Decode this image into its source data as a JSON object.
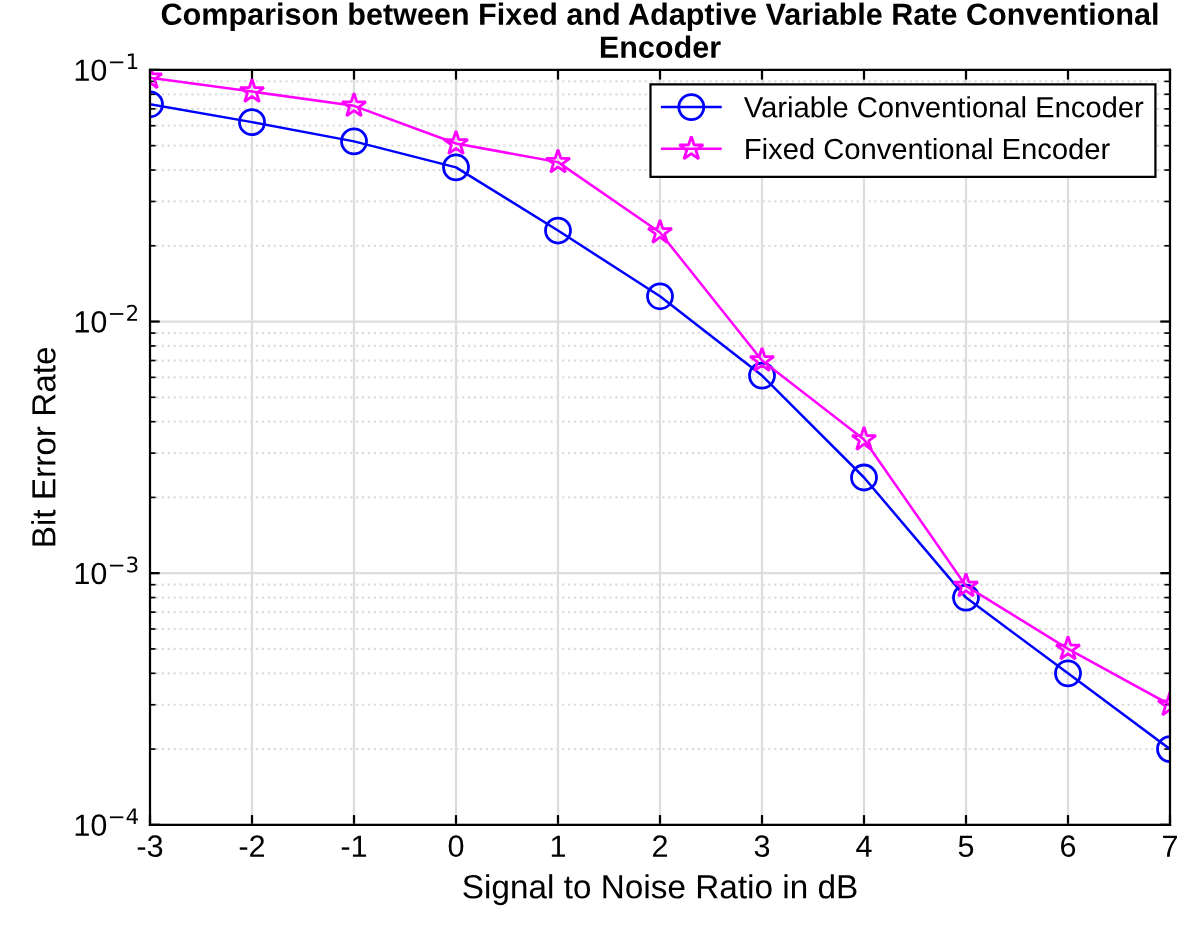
{
  "chart_data": {
    "type": "line",
    "title": "Comparison between Fixed and Adaptive Variable Rate Conventional Encoder",
    "xlabel": "Signal to Noise Ratio in dB",
    "ylabel": "Bit Error Rate",
    "x": [
      -3,
      -2,
      -1,
      0,
      1,
      2,
      3,
      4,
      5,
      6,
      7
    ],
    "series": [
      {
        "name": "Variable Conventional Encoder",
        "color": "#0000ff",
        "marker": "circle",
        "values": [
          0.073,
          0.062,
          0.052,
          0.041,
          0.023,
          0.0126,
          0.0061,
          0.0024,
          0.0008,
          0.0004,
          0.0002
        ]
      },
      {
        "name": "Fixed Conventional Encoder",
        "color": "#ff00ff",
        "marker": "star",
        "values": [
          0.093,
          0.082,
          0.072,
          0.051,
          0.043,
          0.0226,
          0.007,
          0.0034,
          0.00089,
          0.0005,
          0.0003
        ]
      }
    ],
    "log": "y",
    "xlim": [
      -3,
      7
    ],
    "xticks": [
      -3,
      -2,
      -1,
      0,
      1,
      2,
      3,
      4,
      5,
      6,
      7
    ],
    "ylim": [
      0.0001,
      0.1
    ],
    "yticks": [
      {
        "value": 0.0001,
        "label": "10$^{−4}$"
      },
      {
        "value": 0.001,
        "label": "10$^{−3}$"
      },
      {
        "value": 0.01,
        "label": "10$^{−2}$"
      },
      {
        "value": 0.1,
        "label": "10$^{−1}$"
      }
    ],
    "grid": true,
    "legend": "top right",
    "line_style": "solid"
  }
}
